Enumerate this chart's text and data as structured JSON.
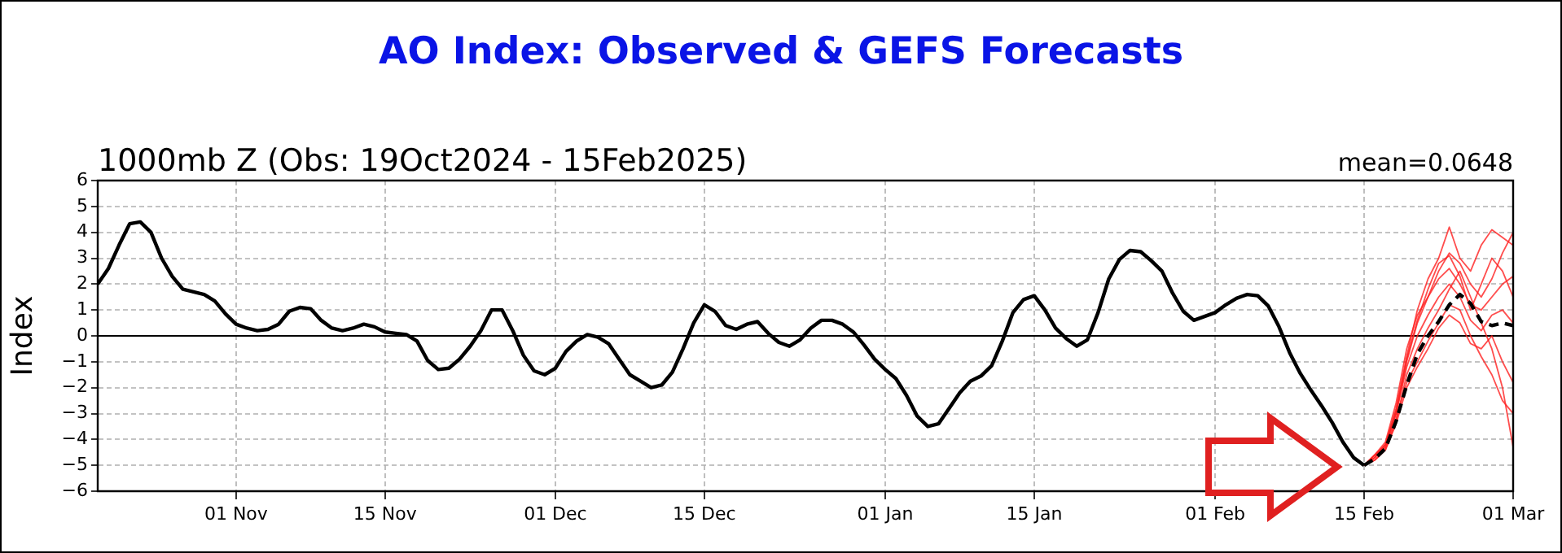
{
  "chart_data": {
    "type": "line",
    "title": "AO Index: Observed & GEFS Forecasts",
    "subtitle": "1000mb Z (Obs: 19Oct2024 - 15Feb2025)",
    "annotations": [
      "mean=0.0648"
    ],
    "ylabel": "Index",
    "xlim": [
      "2024-10-19",
      "2025-03-01"
    ],
    "xticks": [
      {
        "value": "2024-11-01",
        "label": "01 Nov"
      },
      {
        "value": "2024-11-15",
        "label": "15 Nov"
      },
      {
        "value": "2024-12-01",
        "label": "01 Dec"
      },
      {
        "value": "2024-12-15",
        "label": "15 Dec"
      },
      {
        "value": "2025-01-01",
        "label": "01 Jan"
      },
      {
        "value": "2025-01-15",
        "label": "15 Jan"
      },
      {
        "value": "2025-02-01",
        "label": "01 Feb"
      },
      {
        "value": "2025-02-15",
        "label": "15 Feb"
      },
      {
        "value": "2025-03-01",
        "label": "01 Mar"
      }
    ],
    "ylim": [
      -6,
      6
    ],
    "yticks": [
      {
        "value": -6,
        "label": "−6"
      },
      {
        "value": -5,
        "label": "−5"
      },
      {
        "value": -4,
        "label": "−4"
      },
      {
        "value": -3,
        "label": "−3"
      },
      {
        "value": -2,
        "label": "−2"
      },
      {
        "value": -1,
        "label": "−1"
      },
      0,
      1,
      2,
      3,
      4,
      5,
      6
    ],
    "grid": true,
    "legend": false,
    "marker": "none",
    "ref_lines": [
      {
        "axis": "y",
        "value": 0,
        "color": "#000000",
        "line_style": "solid"
      }
    ],
    "x": [
      "2024-10-19",
      "2024-10-20",
      "2024-10-21",
      "2024-10-22",
      "2024-10-23",
      "2024-10-24",
      "2024-10-25",
      "2024-10-26",
      "2024-10-27",
      "2024-10-28",
      "2024-10-29",
      "2024-10-30",
      "2024-10-31",
      "2024-11-01",
      "2024-11-02",
      "2024-11-03",
      "2024-11-04",
      "2024-11-05",
      "2024-11-06",
      "2024-11-07",
      "2024-11-08",
      "2024-11-09",
      "2024-11-10",
      "2024-11-11",
      "2024-11-12",
      "2024-11-13",
      "2024-11-14",
      "2024-11-15",
      "2024-11-16",
      "2024-11-17",
      "2024-11-18",
      "2024-11-19",
      "2024-11-20",
      "2024-11-21",
      "2024-11-22",
      "2024-11-23",
      "2024-11-24",
      "2024-11-25",
      "2024-11-26",
      "2024-11-27",
      "2024-11-28",
      "2024-11-29",
      "2024-11-30",
      "2024-12-01",
      "2024-12-02",
      "2024-12-03",
      "2024-12-04",
      "2024-12-05",
      "2024-12-06",
      "2024-12-07",
      "2024-12-08",
      "2024-12-09",
      "2024-12-10",
      "2024-12-11",
      "2024-12-12",
      "2024-12-13",
      "2024-12-14",
      "2024-12-15",
      "2024-12-16",
      "2024-12-17",
      "2024-12-18",
      "2024-12-19",
      "2024-12-20",
      "2024-12-21",
      "2024-12-22",
      "2024-12-23",
      "2024-12-24",
      "2024-12-25",
      "2024-12-26",
      "2024-12-27",
      "2024-12-28",
      "2024-12-29",
      "2024-12-30",
      "2024-12-31",
      "2025-01-01",
      "2025-01-02",
      "2025-01-03",
      "2025-01-04",
      "2025-01-05",
      "2025-01-06",
      "2025-01-07",
      "2025-01-08",
      "2025-01-09",
      "2025-01-10",
      "2025-01-11",
      "2025-01-12",
      "2025-01-13",
      "2025-01-14",
      "2025-01-15",
      "2025-01-16",
      "2025-01-17",
      "2025-01-18",
      "2025-01-19",
      "2025-01-20",
      "2025-01-21",
      "2025-01-22",
      "2025-01-23",
      "2025-01-24",
      "2025-01-25",
      "2025-01-26",
      "2025-01-27",
      "2025-01-28",
      "2025-01-29",
      "2025-01-30",
      "2025-01-31",
      "2025-02-01",
      "2025-02-02",
      "2025-02-03",
      "2025-02-04",
      "2025-02-05",
      "2025-02-06",
      "2025-02-07",
      "2025-02-08",
      "2025-02-09",
      "2025-02-10",
      "2025-02-11",
      "2025-02-12",
      "2025-02-13",
      "2025-02-14",
      "2025-02-15"
    ],
    "series": [
      {
        "color": "#000000",
        "values": [
          2.0,
          2.6,
          3.5,
          4.33,
          4.4,
          4.0,
          3.0,
          2.3,
          1.8,
          1.7,
          1.6,
          1.35,
          0.85,
          0.45,
          0.3,
          0.2,
          0.25,
          0.45,
          0.95,
          1.1,
          1.05,
          0.6,
          0.3,
          0.2,
          0.3,
          0.45,
          0.35,
          0.15,
          0.1,
          0.05,
          -0.2,
          -0.95,
          -1.3,
          -1.25,
          -0.9,
          -0.4,
          0.2,
          1.0,
          1.0,
          0.2,
          -0.75,
          -1.35,
          -1.5,
          -1.25,
          -0.6,
          -0.2,
          0.05,
          -0.05,
          -0.3,
          -0.9,
          -1.5,
          -1.75,
          -2.0,
          -1.9,
          -1.4,
          -0.5,
          0.5,
          1.2,
          0.95,
          0.4,
          0.25,
          0.45,
          0.55,
          0.1,
          -0.25,
          -0.4,
          -0.15,
          0.3,
          0.6,
          0.6,
          0.45,
          0.15,
          -0.35,
          -0.9,
          -1.3,
          -1.65,
          -2.3,
          -3.1,
          -3.5,
          -3.4,
          -2.8,
          -2.2,
          -1.75,
          -1.55,
          -1.15,
          -0.2,
          0.9,
          1.4,
          1.55,
          1.0,
          0.3,
          -0.1,
          -0.4,
          -0.15,
          0.9,
          2.2,
          2.95,
          3.3,
          3.25,
          2.9,
          2.5,
          1.65,
          0.95,
          0.6,
          0.75,
          0.9,
          1.2,
          1.45,
          1.6,
          1.55,
          1.15,
          0.35,
          -0.65,
          -1.45,
          -2.1,
          -2.7,
          -3.35,
          -4.1,
          -4.7,
          -5.0
        ]
      },
      {
        "color": "#ff2020",
        "x": [
          "2025-02-15",
          "2025-02-16",
          "2025-02-17",
          "2025-02-18",
          "2025-02-19",
          "2025-02-20",
          "2025-02-21",
          "2025-02-22",
          "2025-02-23",
          "2025-02-24",
          "2025-02-25",
          "2025-02-26",
          "2025-02-27",
          "2025-02-28",
          "2025-03-01"
        ],
        "values": [
          -5,
          -4.7,
          -4.2,
          -2.8,
          -0.8,
          1.0,
          2.2,
          3.0,
          4.2,
          3.0,
          2.5,
          3.5,
          4.1,
          3.8,
          3.5
        ]
      },
      {
        "color": "#ff2020",
        "x": [
          "2025-02-15",
          "2025-02-16",
          "2025-02-17",
          "2025-02-18",
          "2025-02-19",
          "2025-02-20",
          "2025-02-21",
          "2025-02-22",
          "2025-02-23",
          "2025-02-24",
          "2025-02-25",
          "2025-02-26",
          "2025-02-27",
          "2025-02-28",
          "2025-03-01"
        ],
        "values": [
          -5,
          -4.6,
          -4.3,
          -3.0,
          -1.0,
          0.5,
          1.5,
          2.5,
          3.2,
          2.8,
          2.0,
          1.5,
          2.2,
          3.2,
          4.0
        ]
      },
      {
        "color": "#ff2020",
        "x": [
          "2025-02-15",
          "2025-02-16",
          "2025-02-17",
          "2025-02-18",
          "2025-02-19",
          "2025-02-20",
          "2025-02-21",
          "2025-02-22",
          "2025-02-23",
          "2025-02-24",
          "2025-02-25",
          "2025-02-26",
          "2025-02-27",
          "2025-02-28",
          "2025-03-01"
        ],
        "values": [
          -5,
          -4.8,
          -4.4,
          -3.3,
          -1.5,
          -0.5,
          0.3,
          1.0,
          1.8,
          2.5,
          1.5,
          0.5,
          -0.5,
          -2.0,
          -4.3
        ]
      },
      {
        "color": "#ff2020",
        "x": [
          "2025-02-15",
          "2025-02-16",
          "2025-02-17",
          "2025-02-18",
          "2025-02-19",
          "2025-02-20",
          "2025-02-21",
          "2025-02-22",
          "2025-02-23",
          "2025-02-24",
          "2025-02-25",
          "2025-02-26",
          "2025-02-27",
          "2025-02-28",
          "2025-03-01"
        ],
        "values": [
          -5,
          -4.7,
          -4.3,
          -3.2,
          -1.8,
          -1.0,
          -0.2,
          0.5,
          1.2,
          1.0,
          0.0,
          -0.8,
          -1.5,
          -2.5,
          -3.0
        ]
      },
      {
        "color": "#ff2020",
        "x": [
          "2025-02-15",
          "2025-02-16",
          "2025-02-17",
          "2025-02-18",
          "2025-02-19",
          "2025-02-20",
          "2025-02-21",
          "2025-02-22",
          "2025-02-23",
          "2025-02-24",
          "2025-02-25",
          "2025-02-26",
          "2025-02-27",
          "2025-02-28",
          "2025-03-01"
        ],
        "values": [
          -5,
          -4.6,
          -4.1,
          -2.6,
          -0.5,
          0.8,
          1.5,
          2.2,
          2.6,
          2.0,
          1.2,
          1.0,
          1.5,
          2.0,
          2.3
        ]
      },
      {
        "color": "#ff2020",
        "x": [
          "2025-02-15",
          "2025-02-16",
          "2025-02-17",
          "2025-02-18",
          "2025-02-19",
          "2025-02-20",
          "2025-02-21",
          "2025-02-22",
          "2025-02-23",
          "2025-02-24",
          "2025-02-25",
          "2025-02-26",
          "2025-02-27",
          "2025-02-28",
          "2025-03-01"
        ],
        "values": [
          -5,
          -4.7,
          -4.2,
          -3.0,
          -1.2,
          0.0,
          0.8,
          1.5,
          2.0,
          1.5,
          0.6,
          0.2,
          0.8,
          1.0,
          0.5
        ]
      },
      {
        "color": "#ff2020",
        "x": [
          "2025-02-15",
          "2025-02-16",
          "2025-02-17",
          "2025-02-18",
          "2025-02-19",
          "2025-02-20",
          "2025-02-21",
          "2025-02-22",
          "2025-02-23",
          "2025-02-24",
          "2025-02-25",
          "2025-02-26",
          "2025-02-27",
          "2025-02-28",
          "2025-03-01"
        ],
        "values": [
          -5,
          -4.8,
          -4.4,
          -3.4,
          -2.0,
          -1.2,
          -0.5,
          0.3,
          0.8,
          0.5,
          -0.3,
          -0.5,
          0.0,
          -1.0,
          -1.8
        ]
      },
      {
        "color": "#ff2020",
        "x": [
          "2025-02-15",
          "2025-02-16",
          "2025-02-17",
          "2025-02-18",
          "2025-02-19",
          "2025-02-20",
          "2025-02-21",
          "2025-02-22",
          "2025-02-23",
          "2025-02-24",
          "2025-02-25",
          "2025-02-26",
          "2025-02-27",
          "2025-02-28",
          "2025-03-01"
        ],
        "values": [
          -5,
          -4.6,
          -4.2,
          -2.9,
          -0.9,
          0.6,
          1.8,
          2.8,
          3.1,
          2.3,
          1.0,
          2.0,
          3.0,
          2.5,
          1.5
        ]
      },
      {
        "color": "#000000",
        "line_style": "dashed",
        "x": [
          "2025-02-15",
          "2025-02-16",
          "2025-02-17",
          "2025-02-18",
          "2025-02-19",
          "2025-02-20",
          "2025-02-21",
          "2025-02-22",
          "2025-02-23",
          "2025-02-24",
          "2025-02-25",
          "2025-02-26",
          "2025-02-27",
          "2025-02-28",
          "2025-03-01"
        ],
        "values": [
          -5.0,
          -4.75,
          -4.35,
          -3.3,
          -1.9,
          -0.7,
          0.0,
          0.55,
          1.2,
          1.6,
          1.25,
          0.55,
          0.4,
          0.5,
          0.4
        ]
      }
    ]
  }
}
